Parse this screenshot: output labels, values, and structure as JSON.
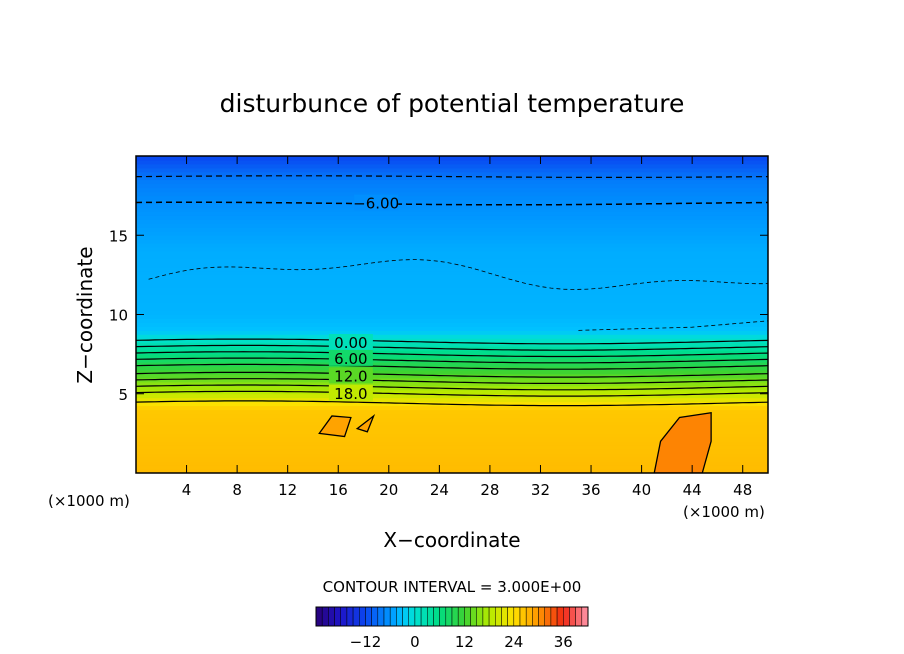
{
  "chart_data": {
    "type": "heatmap",
    "title": "disturbunce of potential temperature",
    "xlabel": "X−coordinate",
    "ylabel": "Z−coordinate",
    "x_unit_left": "(×1000 m)",
    "x_unit_right": "(×1000 m)",
    "xlim": [
      0,
      50
    ],
    "ylim": [
      0,
      20
    ],
    "x_ticks": [
      4,
      8,
      12,
      16,
      20,
      24,
      28,
      32,
      36,
      40,
      44,
      48
    ],
    "y_ticks": [
      5,
      10,
      15
    ],
    "contour_interval_text": "CONTOUR INTERVAL = 3.000E+00",
    "contour_labels": [
      {
        "text": "−6.00",
        "x": 19.0,
        "y": 17.0
      },
      {
        "text": "0.00",
        "x": 17.0,
        "y": 8.2
      },
      {
        "text": "6.00",
        "x": 17.0,
        "y": 7.2
      },
      {
        "text": "12.0",
        "x": 17.0,
        "y": 6.1
      },
      {
        "text": "18.0",
        "x": 17.0,
        "y": 5.0
      }
    ],
    "colorbar": {
      "min": -24,
      "max": 42,
      "ticks": [
        "−12",
        "0",
        "12",
        "24",
        "36"
      ],
      "tick_values": [
        -12,
        0,
        12,
        24,
        36
      ]
    },
    "profile": [
      {
        "z": 0.0,
        "v": 27
      },
      {
        "z": 4.0,
        "v": 26
      },
      {
        "z": 4.5,
        "v": 23
      },
      {
        "z": 5.0,
        "v": 19
      },
      {
        "z": 6.0,
        "v": 14
      },
      {
        "z": 7.0,
        "v": 9
      },
      {
        "z": 8.0,
        "v": 3
      },
      {
        "z": 9.0,
        "v": -3
      },
      {
        "z": 10.0,
        "v": -4
      },
      {
        "z": 14.0,
        "v": -4.5
      },
      {
        "z": 17.0,
        "v": -6.5
      },
      {
        "z": 18.5,
        "v": -8
      },
      {
        "z": 20.0,
        "v": -12
      }
    ]
  }
}
